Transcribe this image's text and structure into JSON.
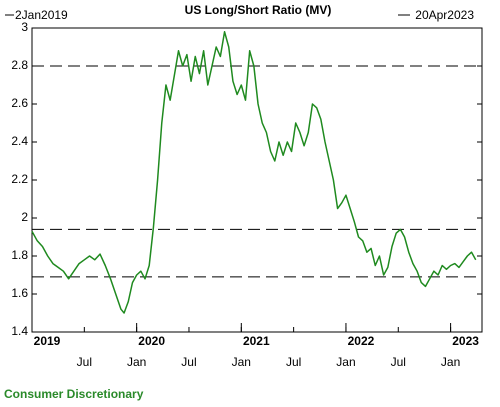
{
  "chart_data": {
    "type": "line",
    "title": "US Long/Short Ratio (MV)",
    "start_label": "2Jan2019",
    "end_label": "20Apr2023",
    "footer": "Consumer Discretionary",
    "series": [
      {
        "name": "US Long/Short Ratio (MV)",
        "color": "#1f8a1f",
        "x": [
          2019.0,
          2019.05,
          2019.1,
          2019.15,
          2019.2,
          2019.25,
          2019.3,
          2019.35,
          2019.4,
          2019.45,
          2019.5,
          2019.55,
          2019.6,
          2019.65,
          2019.7,
          2019.75,
          2019.8,
          2019.85,
          2019.88,
          2019.92,
          2019.96,
          2020.0,
          2020.04,
          2020.08,
          2020.12,
          2020.16,
          2020.2,
          2020.24,
          2020.28,
          2020.32,
          2020.36,
          2020.4,
          2020.44,
          2020.48,
          2020.52,
          2020.56,
          2020.6,
          2020.64,
          2020.68,
          2020.72,
          2020.76,
          2020.8,
          2020.84,
          2020.88,
          2020.92,
          2020.96,
          2021.0,
          2021.04,
          2021.08,
          2021.12,
          2021.16,
          2021.2,
          2021.24,
          2021.28,
          2021.32,
          2021.36,
          2021.4,
          2021.44,
          2021.48,
          2021.52,
          2021.56,
          2021.6,
          2021.64,
          2021.68,
          2021.72,
          2021.76,
          2021.8,
          2021.84,
          2021.88,
          2021.92,
          2021.96,
          2022.0,
          2022.04,
          2022.08,
          2022.12,
          2022.16,
          2022.2,
          2022.24,
          2022.28,
          2022.32,
          2022.36,
          2022.4,
          2022.44,
          2022.48,
          2022.52,
          2022.56,
          2022.6,
          2022.64,
          2022.68,
          2022.72,
          2022.76,
          2022.8,
          2022.84,
          2022.88,
          2022.92,
          2022.96,
          2023.0,
          2023.04,
          2023.08,
          2023.12,
          2023.16,
          2023.2,
          2023.24
        ],
        "values": [
          1.93,
          1.88,
          1.85,
          1.8,
          1.76,
          1.74,
          1.72,
          1.68,
          1.72,
          1.76,
          1.78,
          1.8,
          1.78,
          1.81,
          1.75,
          1.68,
          1.6,
          1.52,
          1.5,
          1.56,
          1.66,
          1.7,
          1.72,
          1.68,
          1.75,
          1.95,
          2.2,
          2.5,
          2.7,
          2.62,
          2.75,
          2.88,
          2.8,
          2.86,
          2.72,
          2.85,
          2.76,
          2.88,
          2.7,
          2.8,
          2.9,
          2.85,
          2.98,
          2.9,
          2.72,
          2.65,
          2.7,
          2.62,
          2.88,
          2.8,
          2.6,
          2.5,
          2.45,
          2.35,
          2.3,
          2.4,
          2.33,
          2.4,
          2.35,
          2.5,
          2.45,
          2.38,
          2.45,
          2.6,
          2.58,
          2.52,
          2.4,
          2.3,
          2.2,
          2.05,
          2.08,
          2.12,
          2.05,
          1.98,
          1.9,
          1.88,
          1.82,
          1.84,
          1.75,
          1.8,
          1.7,
          1.74,
          1.85,
          1.92,
          1.94,
          1.9,
          1.82,
          1.76,
          1.72,
          1.66,
          1.64,
          1.68,
          1.72,
          1.7,
          1.75,
          1.73,
          1.75,
          1.76,
          1.74,
          1.77,
          1.8,
          1.82,
          1.78
        ]
      }
    ],
    "reference_lines": [
      2.8,
      1.94,
      1.69
    ],
    "xlim": [
      2019.0,
      2023.3
    ],
    "ylim": [
      1.4,
      3.0
    ],
    "yticks": [
      1.4,
      1.6,
      1.8,
      2,
      2.2,
      2.4,
      2.6,
      2.8,
      3
    ],
    "xticks": [
      {
        "value": 2019.5,
        "label": "Jul"
      },
      {
        "value": 2020.0,
        "label": "Jan"
      },
      {
        "value": 2020.5,
        "label": "Jul"
      },
      {
        "value": 2021.0,
        "label": "Jan"
      },
      {
        "value": 2021.5,
        "label": "Jul"
      },
      {
        "value": 2022.0,
        "label": "Jan"
      },
      {
        "value": 2022.5,
        "label": "Jul"
      },
      {
        "value": 2023.0,
        "label": "Jan"
      }
    ],
    "xticks_major": [
      {
        "value": 2019.0,
        "label": "2019"
      },
      {
        "value": 2020.0,
        "label": "2020"
      },
      {
        "value": 2021.0,
        "label": "2021"
      },
      {
        "value": 2022.0,
        "label": "2022"
      },
      {
        "value": 2023.0,
        "label": "2023"
      }
    ]
  }
}
